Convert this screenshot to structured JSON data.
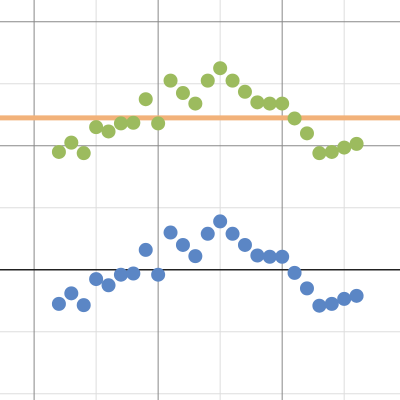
{
  "chart_data": {
    "type": "scatter",
    "title": "",
    "xlabel": "",
    "ylabel": "",
    "grid": true,
    "xlim": [
      -0.55,
      5.9
    ],
    "ylim": [
      -2.1,
      4.35
    ],
    "x_axis_visible": true,
    "y_axis_visible": false,
    "colors": {
      "upper": "#9CBB5E",
      "lower": "#5B86C5",
      "hline": "#F2B27A",
      "axis": "#222222",
      "grid_major": "#888888",
      "grid_minor": "#dddddd"
    },
    "series": [
      {
        "color_key": "upper",
        "points": [
          [
            0.4,
            1.9
          ],
          [
            0.6,
            2.05
          ],
          [
            0.8,
            1.88
          ],
          [
            1.0,
            2.3
          ],
          [
            1.2,
            2.23
          ],
          [
            1.4,
            2.36
          ],
          [
            1.6,
            2.37
          ],
          [
            1.8,
            2.75
          ],
          [
            2.0,
            2.36
          ],
          [
            2.2,
            3.05
          ],
          [
            2.4,
            2.85
          ],
          [
            2.6,
            2.68
          ],
          [
            2.8,
            3.05
          ],
          [
            3.0,
            3.25
          ],
          [
            3.2,
            3.05
          ],
          [
            3.4,
            2.87
          ],
          [
            3.6,
            2.7
          ],
          [
            3.8,
            2.68
          ],
          [
            4.0,
            2.68
          ],
          [
            4.2,
            2.44
          ],
          [
            4.4,
            2.2
          ],
          [
            4.6,
            1.88
          ],
          [
            4.8,
            1.9
          ],
          [
            5.0,
            1.97
          ],
          [
            5.2,
            2.03
          ]
        ]
      },
      {
        "color_key": "lower",
        "points": [
          [
            0.4,
            -0.55
          ],
          [
            0.6,
            -0.38
          ],
          [
            0.8,
            -0.57
          ],
          [
            1.0,
            -0.15
          ],
          [
            1.2,
            -0.25
          ],
          [
            1.4,
            -0.08
          ],
          [
            1.6,
            -0.06
          ],
          [
            1.8,
            0.32
          ],
          [
            2.0,
            -0.08
          ],
          [
            2.2,
            0.6
          ],
          [
            2.4,
            0.4
          ],
          [
            2.6,
            0.22
          ],
          [
            2.8,
            0.58
          ],
          [
            3.0,
            0.78
          ],
          [
            3.2,
            0.58
          ],
          [
            3.4,
            0.4
          ],
          [
            3.6,
            0.23
          ],
          [
            3.8,
            0.21
          ],
          [
            4.0,
            0.21
          ],
          [
            4.2,
            -0.05
          ],
          [
            4.4,
            -0.3
          ],
          [
            4.6,
            -0.58
          ],
          [
            4.8,
            -0.55
          ],
          [
            5.0,
            -0.47
          ],
          [
            5.2,
            -0.42
          ]
        ]
      }
    ],
    "hlines": [
      {
        "y": 2.45,
        "color_key": "hline"
      }
    ],
    "gridlines": {
      "major_x": [
        0,
        2,
        4
      ],
      "minor_x": [
        1,
        3,
        5
      ],
      "major_y": [
        2,
        4
      ],
      "minor_y": [
        -2,
        -1,
        1,
        3
      ]
    }
  }
}
